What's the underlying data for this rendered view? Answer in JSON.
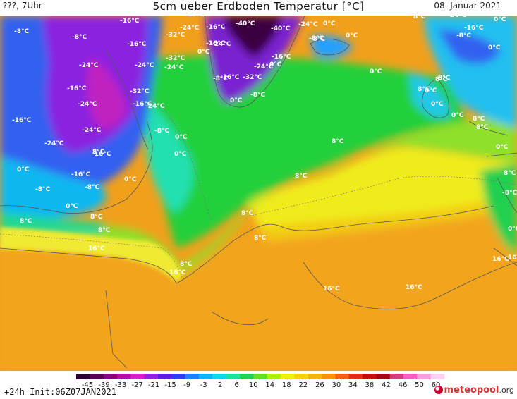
{
  "header": {
    "left": "???, 7Uhr",
    "title": "5cm ueber Erdboden Temperatur [°C]",
    "date": "08. Januar 2021"
  },
  "legend": {
    "ticks": [
      "-45",
      "-39",
      "-33",
      "-27",
      "-21",
      "-15",
      "-9",
      "-3",
      "2",
      "6",
      "10",
      "14",
      "18",
      "22",
      "26",
      "30",
      "34",
      "38",
      "42",
      "46",
      "50",
      "60"
    ],
    "colors": [
      "#2a0030",
      "#5a0050",
      "#8a0080",
      "#b010b0",
      "#d020d0",
      "#9a20e0",
      "#6020e0",
      "#3040f0",
      "#2080ff",
      "#10b0ff",
      "#10d8e8",
      "#20e0a0",
      "#20d050",
      "#60e020",
      "#b0f010",
      "#f0f010",
      "#f8d010",
      "#f8b010",
      "#f89010",
      "#f06010",
      "#e03010",
      "#c01010",
      "#a00818",
      "#d04080",
      "#f060c0",
      "#f8a0e0",
      "#fcd0f0"
    ]
  },
  "footer": {
    "init": "+24h  Init:06Z07JAN2021",
    "brand_name": "meteopool",
    "brand_tld": ".org"
  },
  "map_labels": [
    {
      "t": "-8°C"
    },
    {
      "t": "-16°C"
    },
    {
      "t": "-24°C"
    },
    {
      "t": "-16°C"
    },
    {
      "t": "-24°C"
    },
    {
      "t": "-32°C"
    },
    {
      "t": "-8°C"
    },
    {
      "t": "-24°C"
    },
    {
      "t": "-32°C"
    },
    {
      "t": "-40°C"
    },
    {
      "t": "-40°C"
    },
    {
      "t": "-24°C"
    },
    {
      "t": "-16°C"
    },
    {
      "t": "0°C"
    },
    {
      "t": "8°C"
    },
    {
      "t": "-24°C"
    },
    {
      "t": "-16°C"
    },
    {
      "t": "0°C"
    },
    {
      "t": "-8°C"
    },
    {
      "t": "-16°C"
    },
    {
      "t": "-8°C"
    },
    {
      "t": "0°C"
    },
    {
      "t": "-8°C"
    },
    {
      "t": "0°C"
    },
    {
      "t": "-16°C"
    },
    {
      "t": "-24°C"
    },
    {
      "t": "-32°C"
    },
    {
      "t": "-24°C"
    },
    {
      "t": "-24°C"
    },
    {
      "t": "-16°C"
    },
    {
      "t": "0°C"
    },
    {
      "t": "-24°C"
    },
    {
      "t": "0°C"
    },
    {
      "t": "0°C"
    },
    {
      "t": "8°C"
    },
    {
      "t": "-8°C"
    },
    {
      "t": "-16°C"
    },
    {
      "t": "-32°C"
    },
    {
      "t": "-8°C"
    },
    {
      "t": "0°C"
    },
    {
      "t": "8°C"
    },
    {
      "t": "8°C"
    },
    {
      "t": "0°C"
    },
    {
      "t": "-24°C"
    },
    {
      "t": "-16°C"
    },
    {
      "t": "-24°C"
    },
    {
      "t": "-16°C"
    },
    {
      "t": "0°C"
    },
    {
      "t": "8°C"
    },
    {
      "t": "-16°C"
    },
    {
      "t": "-24°C"
    },
    {
      "t": "-8°C"
    },
    {
      "t": "0°C"
    },
    {
      "t": "8°C"
    },
    {
      "t": "8°C"
    },
    {
      "t": "0°C"
    },
    {
      "t": "-16°C"
    },
    {
      "t": "-16°C"
    },
    {
      "t": "0°C"
    },
    {
      "t": "8°C"
    },
    {
      "t": "0°C"
    },
    {
      "t": "-8°C"
    },
    {
      "t": "-8°C"
    },
    {
      "t": "0°C"
    },
    {
      "t": "8°C"
    },
    {
      "t": "8°C"
    },
    {
      "t": "-8°C"
    },
    {
      "t": "0°C"
    },
    {
      "t": "8°C"
    },
    {
      "t": "8°C"
    },
    {
      "t": "0°C"
    },
    {
      "t": "8°C"
    },
    {
      "t": "8°C"
    },
    {
      "t": "16°C"
    },
    {
      "t": "0°C"
    },
    {
      "t": "16°C"
    },
    {
      "t": "8°C"
    },
    {
      "t": "16°C"
    },
    {
      "t": "16°C"
    },
    {
      "t": "16°C"
    },
    {
      "t": "16°C"
    },
    {
      "t": "8°C"
    }
  ]
}
